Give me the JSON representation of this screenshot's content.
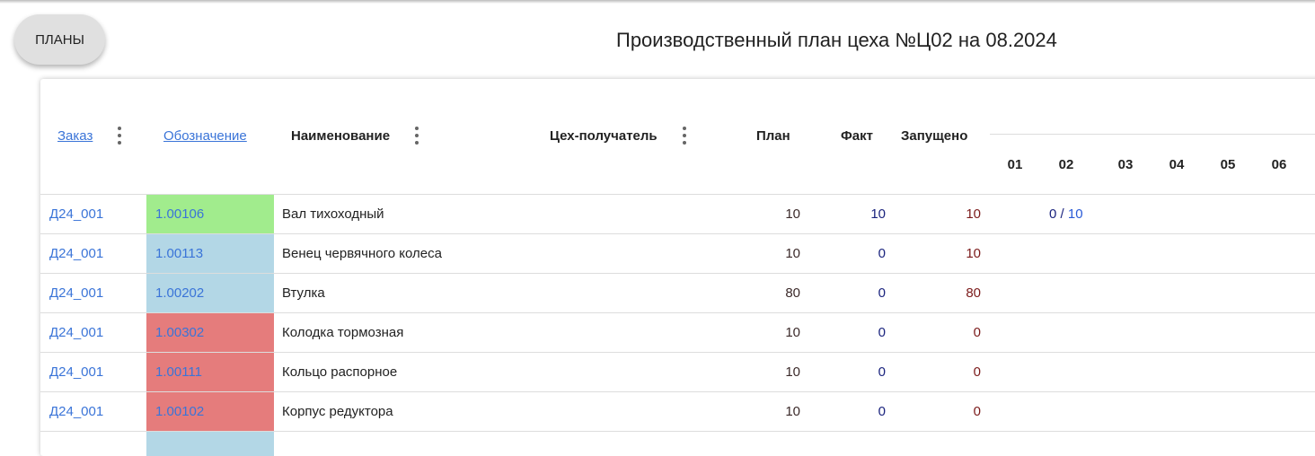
{
  "header": {
    "plans_button": "ПЛАНЫ",
    "title": "Производственный план цеха №Ц02 на 08.2024"
  },
  "columns": {
    "order": "Заказ",
    "code": "Обозначение",
    "name": "Наименование",
    "recipient": "Цех-получатель",
    "plan": "План",
    "fact": "Факт",
    "launched": "Запущено"
  },
  "days": [
    "01",
    "02",
    "03",
    "04",
    "05",
    "06"
  ],
  "colors": {
    "green": "#a1ec8d",
    "blue": "#b3d7e6",
    "red": "#e57c7c",
    "link": "#3a74d8"
  },
  "rows": [
    {
      "order": "Д24_001",
      "code": "1.00106",
      "status": "green",
      "name": "Вал тихоходный",
      "plan": "10",
      "fact": "10",
      "launched": "10",
      "d02_fact": "0",
      "d02_plan": "10"
    },
    {
      "order": "Д24_001",
      "code": "1.00113",
      "status": "blue",
      "name": "Венец червячного колеса",
      "plan": "10",
      "fact": "0",
      "launched": "10"
    },
    {
      "order": "Д24_001",
      "code": "1.00202",
      "status": "blue",
      "name": "Втулка",
      "plan": "80",
      "fact": "0",
      "launched": "80"
    },
    {
      "order": "Д24_001",
      "code": "1.00302",
      "status": "red",
      "name": "Колодка тормозная",
      "plan": "10",
      "fact": "0",
      "launched": "0"
    },
    {
      "order": "Д24_001",
      "code": "1.00111",
      "status": "red",
      "name": "Кольцо распорное",
      "plan": "10",
      "fact": "0",
      "launched": "0"
    },
    {
      "order": "Д24_001",
      "code": "1.00102",
      "status": "red",
      "name": "Корпус редуктора",
      "plan": "10",
      "fact": "0",
      "launched": "0"
    }
  ]
}
